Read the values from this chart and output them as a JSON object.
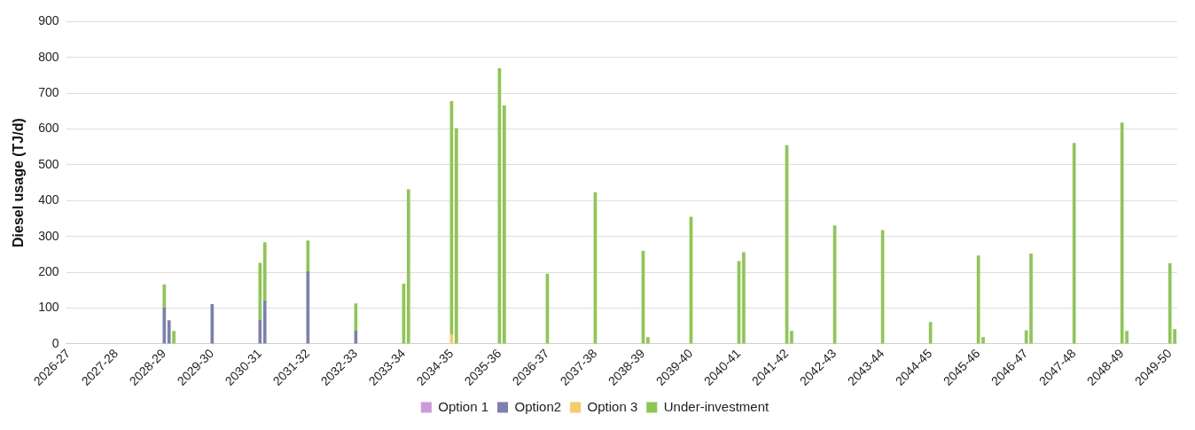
{
  "chart_data": {
    "type": "bar",
    "ylabel": "Diesel usage (TJ/d)",
    "stacked": true,
    "grid": "y",
    "legend": "bottom",
    "ylim": [
      0,
      900
    ],
    "yticks": [
      0,
      100,
      200,
      300,
      400,
      500,
      600,
      700,
      800,
      900
    ],
    "categories": [
      "2026-27",
      null,
      null,
      null,
      null,
      null,
      null,
      null,
      null,
      null,
      "2027-28",
      null,
      null,
      null,
      null,
      null,
      null,
      null,
      null,
      null,
      "2028-29",
      null,
      null,
      null,
      null,
      null,
      null,
      null,
      null,
      null,
      "2029-30",
      null,
      null,
      null,
      null,
      null,
      null,
      null,
      null,
      null,
      "2030-31",
      null,
      null,
      null,
      null,
      null,
      null,
      null,
      null,
      null,
      "2031-32",
      null,
      null,
      null,
      null,
      null,
      null,
      null,
      null,
      null,
      "2032-33",
      null,
      null,
      null,
      null,
      null,
      null,
      null,
      null,
      null,
      "2033-34",
      null,
      null,
      null,
      null,
      null,
      null,
      null,
      null,
      null,
      "2034-35",
      null,
      null,
      null,
      null,
      null,
      null,
      null,
      null,
      null,
      "2035-36",
      null,
      null,
      null,
      null,
      null,
      null,
      null,
      null,
      null,
      "2036-37",
      null,
      null,
      null,
      null,
      null,
      null,
      null,
      null,
      null,
      "2037-38",
      null,
      null,
      null,
      null,
      null,
      null,
      null,
      null,
      null,
      "2038-39",
      null,
      null,
      null,
      null,
      null,
      null,
      null,
      null,
      null,
      "2039-40",
      null,
      null,
      null,
      null,
      null,
      null,
      null,
      null,
      null,
      "2040-41",
      null,
      null,
      null,
      null,
      null,
      null,
      null,
      null,
      null,
      "2041-42",
      null,
      null,
      null,
      null,
      null,
      null,
      null,
      null,
      null,
      "2042-43",
      null,
      null,
      null,
      null,
      null,
      null,
      null,
      null,
      null,
      "2043-44",
      null,
      null,
      null,
      null,
      null,
      null,
      null,
      null,
      null,
      "2044-45",
      null,
      null,
      null,
      null,
      null,
      null,
      null,
      null,
      null,
      "2045-46",
      null,
      null,
      null,
      null,
      null,
      null,
      null,
      null,
      null,
      "2046-47",
      null,
      null,
      null,
      null,
      null,
      null,
      null,
      null,
      null,
      "2047-48",
      null,
      null,
      null,
      null,
      null,
      null,
      null,
      null,
      null,
      "2048-49",
      null,
      null,
      null,
      null,
      null,
      null,
      null,
      null,
      null,
      "2049-50",
      null
    ],
    "series": [
      {
        "name": "Option 1",
        "color": "#cc99dd",
        "values": [
          null,
          null,
          null,
          null,
          null,
          null,
          null,
          null,
          null,
          null,
          null,
          null,
          null,
          null,
          null,
          null,
          null,
          null,
          null,
          null,
          null,
          null,
          null,
          null,
          null,
          null,
          null,
          null,
          null,
          null,
          null,
          null,
          null,
          null,
          null,
          null,
          null,
          null,
          null,
          null,
          null,
          null,
          null,
          null,
          null,
          null,
          null,
          null,
          null,
          null,
          null,
          null,
          null,
          null,
          null,
          null,
          null,
          null,
          null,
          null,
          null,
          null,
          null,
          null,
          null,
          null,
          null,
          null,
          null,
          null,
          null,
          null,
          null,
          null,
          null,
          null,
          null,
          null,
          null,
          null,
          null,
          null,
          null,
          null,
          null,
          null,
          null,
          null,
          null,
          null,
          null,
          null,
          null,
          null,
          null,
          null,
          null,
          null,
          null,
          null,
          null,
          null,
          null,
          null,
          null,
          null,
          null,
          null,
          null,
          null,
          null,
          null,
          null,
          null,
          null,
          null,
          null,
          null,
          null,
          null,
          null,
          null,
          null,
          null,
          null,
          null,
          null,
          null,
          null,
          null,
          null,
          null,
          null,
          null,
          null,
          null,
          null,
          null,
          null,
          null,
          null,
          null,
          null,
          null,
          null,
          null,
          null,
          null,
          null,
          null,
          null,
          null,
          null,
          null,
          null,
          null,
          null,
          null,
          null,
          null,
          null,
          null,
          null,
          null,
          null,
          null,
          null,
          null,
          null,
          null,
          null,
          null,
          null,
          null,
          null,
          null,
          null,
          null,
          null,
          null,
          null,
          null,
          null,
          null,
          null,
          null,
          null,
          null,
          null,
          null,
          null,
          null,
          null,
          null,
          null,
          null,
          null,
          null,
          null,
          null,
          null,
          null,
          null,
          null,
          null,
          null,
          null,
          null,
          null,
          null,
          null,
          null,
          null,
          null,
          null,
          null,
          null,
          null,
          null,
          null,
          null,
          null,
          null,
          null,
          null,
          null,
          null,
          null,
          null,
          null,
          null,
          null
        ]
      },
      {
        "name": "Option2",
        "color": "#7b7fb2",
        "values": [
          null,
          null,
          null,
          null,
          null,
          null,
          null,
          null,
          null,
          null,
          null,
          null,
          null,
          null,
          null,
          null,
          null,
          null,
          null,
          null,
          100,
          65,
          null,
          null,
          null,
          null,
          null,
          null,
          null,
          null,
          110,
          null,
          null,
          null,
          null,
          null,
          null,
          null,
          null,
          null,
          65,
          120,
          null,
          null,
          null,
          null,
          null,
          null,
          null,
          null,
          202,
          null,
          null,
          null,
          null,
          null,
          null,
          null,
          null,
          null,
          35,
          null,
          null,
          null,
          null,
          null,
          null,
          null,
          null,
          null,
          null,
          null,
          null,
          null,
          null,
          null,
          null,
          null,
          null,
          null,
          null,
          null,
          null,
          null,
          null,
          null,
          null,
          null,
          null,
          null,
          null,
          null,
          null,
          null,
          null,
          null,
          null,
          null,
          null,
          null,
          null,
          null,
          null,
          null,
          null,
          null,
          null,
          null,
          null,
          null,
          null,
          null,
          null,
          null,
          null,
          null,
          null,
          null,
          null,
          null,
          null,
          null,
          null,
          null,
          null,
          null,
          null,
          null,
          null,
          null,
          null,
          null,
          null,
          null,
          null,
          null,
          null,
          null,
          null,
          null,
          null,
          null,
          null,
          null,
          null,
          null,
          null,
          null,
          null,
          null,
          null,
          null,
          null,
          null,
          null,
          null,
          null,
          null,
          null,
          null,
          null,
          null,
          null,
          null,
          null,
          null,
          null,
          null,
          null,
          null,
          null,
          null,
          null,
          null,
          null,
          null,
          null,
          null,
          null,
          null,
          null,
          null,
          null,
          null,
          null,
          null,
          null,
          null,
          null,
          null,
          null,
          null,
          null,
          null,
          null,
          null,
          null,
          null,
          null,
          null,
          null,
          null,
          null,
          null,
          null,
          null,
          null,
          null,
          null,
          null,
          null,
          null,
          null,
          null,
          null,
          null,
          null,
          null,
          null,
          null,
          null,
          null,
          null,
          null,
          null,
          null,
          null,
          null,
          null,
          null,
          null,
          null
        ]
      },
      {
        "name": "Option 3",
        "color": "#f8cb6a",
        "values": [
          null,
          null,
          null,
          null,
          null,
          null,
          null,
          null,
          null,
          null,
          null,
          null,
          null,
          null,
          null,
          null,
          null,
          null,
          null,
          null,
          null,
          null,
          null,
          null,
          null,
          null,
          null,
          null,
          null,
          null,
          null,
          null,
          null,
          null,
          null,
          null,
          null,
          null,
          null,
          null,
          null,
          null,
          null,
          null,
          null,
          null,
          null,
          null,
          null,
          null,
          null,
          null,
          null,
          null,
          null,
          null,
          null,
          null,
          null,
          null,
          null,
          null,
          null,
          null,
          null,
          null,
          null,
          null,
          null,
          null,
          null,
          null,
          null,
          null,
          null,
          null,
          null,
          null,
          null,
          null,
          26,
          null,
          null,
          null,
          null,
          null,
          null,
          null,
          null,
          null,
          null,
          null,
          null,
          null,
          null,
          null,
          null,
          null,
          null,
          null,
          null,
          null,
          null,
          null,
          null,
          null,
          null,
          null,
          null,
          null,
          null,
          null,
          null,
          null,
          null,
          null,
          null,
          null,
          null,
          null,
          null,
          null,
          null,
          null,
          null,
          null,
          null,
          null,
          null,
          null,
          null,
          null,
          null,
          null,
          null,
          null,
          null,
          null,
          null,
          null,
          null,
          null,
          null,
          null,
          null,
          null,
          null,
          null,
          null,
          null,
          null,
          null,
          null,
          null,
          null,
          null,
          null,
          null,
          null,
          null,
          null,
          null,
          null,
          null,
          null,
          null,
          null,
          null,
          null,
          null,
          null,
          null,
          null,
          null,
          null,
          null,
          null,
          null,
          null,
          null,
          null,
          null,
          null,
          null,
          null,
          null,
          null,
          null,
          null,
          null,
          null,
          null,
          null,
          null,
          null,
          null,
          null,
          null,
          null,
          null,
          null,
          null,
          null,
          null,
          null,
          null,
          null,
          null,
          null,
          null,
          null,
          null,
          null,
          null,
          null,
          null,
          null,
          null,
          null,
          null,
          null,
          null,
          null,
          null,
          null,
          null,
          null,
          null,
          null,
          null,
          null,
          null
        ]
      },
      {
        "name": "Under-investment",
        "color": "#8cc751",
        "values": [
          null,
          null,
          null,
          null,
          null,
          null,
          null,
          null,
          null,
          null,
          null,
          null,
          null,
          null,
          null,
          null,
          null,
          null,
          null,
          null,
          65,
          null,
          35,
          null,
          null,
          null,
          null,
          null,
          null,
          null,
          null,
          null,
          null,
          null,
          null,
          null,
          null,
          null,
          null,
          null,
          160,
          163,
          null,
          null,
          null,
          null,
          null,
          null,
          null,
          null,
          86,
          null,
          null,
          null,
          null,
          null,
          null,
          null,
          null,
          null,
          77,
          null,
          null,
          null,
          null,
          null,
          null,
          null,
          null,
          null,
          167,
          431,
          null,
          null,
          null,
          null,
          null,
          null,
          null,
          null,
          651,
          602,
          null,
          null,
          null,
          null,
          null,
          null,
          null,
          null,
          769,
          665,
          null,
          null,
          null,
          null,
          null,
          null,
          null,
          null,
          195,
          null,
          null,
          null,
          null,
          null,
          null,
          null,
          null,
          null,
          422,
          null,
          null,
          null,
          null,
          null,
          null,
          null,
          null,
          null,
          259,
          18,
          null,
          null,
          null,
          null,
          null,
          null,
          null,
          null,
          354,
          null,
          null,
          null,
          null,
          null,
          null,
          null,
          null,
          null,
          230,
          255,
          null,
          null,
          null,
          null,
          null,
          null,
          null,
          null,
          554,
          35,
          null,
          null,
          null,
          null,
          null,
          null,
          null,
          null,
          330,
          null,
          null,
          null,
          null,
          null,
          null,
          null,
          null,
          null,
          317,
          null,
          null,
          null,
          null,
          null,
          null,
          null,
          null,
          null,
          60,
          null,
          null,
          null,
          null,
          null,
          null,
          null,
          null,
          null,
          246,
          18,
          null,
          null,
          null,
          null,
          null,
          null,
          null,
          null,
          37,
          251,
          null,
          null,
          null,
          null,
          null,
          null,
          null,
          null,
          560,
          null,
          null,
          null,
          null,
          null,
          null,
          null,
          null,
          null,
          617,
          35,
          null,
          null,
          null,
          null,
          null,
          null,
          null,
          null,
          224,
          40
        ]
      }
    ]
  }
}
